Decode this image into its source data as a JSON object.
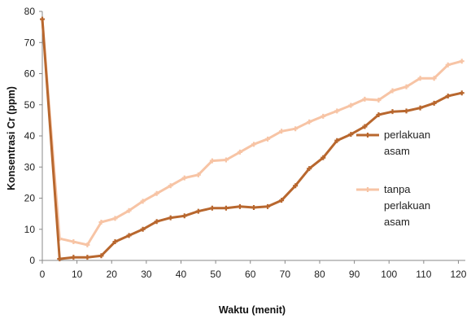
{
  "chart_data": {
    "type": "line",
    "xlabel": "Waktu (menit)",
    "ylabel": "Konsentrasi Cr  (ppm)",
    "xlim": [
      0,
      122
    ],
    "ylim": [
      0,
      80
    ],
    "xticks": [
      0,
      10,
      20,
      30,
      40,
      50,
      60,
      70,
      80,
      90,
      100,
      110,
      120
    ],
    "yticks": [
      0,
      10,
      20,
      30,
      40,
      50,
      60,
      70,
      80
    ],
    "grid": false,
    "legend_position": "right",
    "series": [
      {
        "name": "perlakuan asam",
        "legend_lines": [
          "perlakuan",
          "asam"
        ],
        "color": "#B8672E",
        "x": [
          0,
          5,
          9,
          13,
          17,
          21,
          25,
          29,
          33,
          37,
          41,
          45,
          49,
          53,
          57,
          61,
          65,
          69,
          73,
          77,
          81,
          85,
          89,
          93,
          97,
          101,
          105,
          109,
          113,
          117,
          121
        ],
        "y": [
          77.5,
          0.5,
          1.0,
          1.0,
          1.5,
          6.0,
          8.0,
          10.0,
          12.5,
          13.7,
          14.3,
          15.8,
          16.8,
          16.8,
          17.3,
          17.0,
          17.3,
          19.3,
          24.0,
          29.5,
          33.0,
          38.5,
          40.5,
          43.0,
          46.8,
          47.8,
          48.0,
          49.0,
          50.5,
          52.8,
          53.8
        ]
      },
      {
        "name": "tanpa perlakuan asam",
        "legend_lines": [
          "tanpa",
          "perlakuan",
          "asam"
        ],
        "color": "#F7C4A5",
        "x": [
          0,
          5,
          9,
          13,
          17,
          21,
          25,
          29,
          33,
          37,
          41,
          45,
          49,
          53,
          57,
          61,
          65,
          69,
          73,
          77,
          81,
          85,
          89,
          93,
          97,
          101,
          105,
          109,
          113,
          117,
          121
        ],
        "y": [
          77.5,
          7.0,
          6.0,
          5.0,
          12.3,
          13.5,
          16.0,
          19.0,
          21.5,
          24.0,
          26.5,
          27.5,
          32.0,
          32.3,
          34.8,
          37.3,
          39.0,
          41.5,
          42.3,
          44.5,
          46.3,
          48.0,
          49.8,
          51.8,
          51.5,
          54.5,
          55.8,
          58.5,
          58.5,
          62.8,
          64.0
        ]
      }
    ]
  }
}
